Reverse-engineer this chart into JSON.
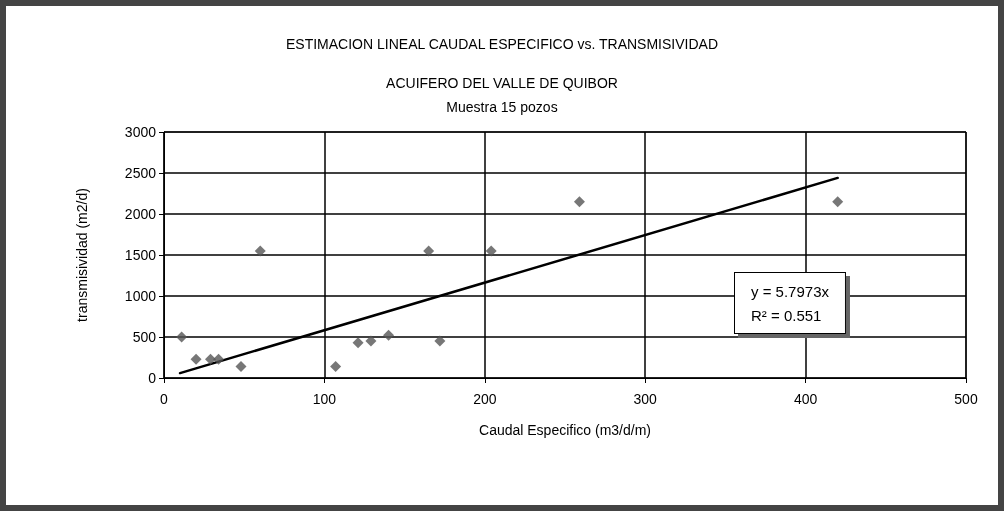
{
  "chart_data": {
    "type": "scatter",
    "title": "ESTIMACION LINEAL CAUDAL ESPECIFICO vs. TRANSMISIVIDAD",
    "subtitle": "ACUIFERO DEL VALLE DE QUIBOR\nMuestra 15 pozos",
    "xlabel": "Caudal Especifico (m3/d/m)",
    "ylabel": "transmisividad (m2/d)",
    "series": [
      {
        "color": "#555555",
        "x": [
          11,
          20,
          29,
          34,
          48,
          60,
          107,
          121,
          129,
          140,
          165,
          172,
          204,
          259,
          420
        ],
        "values": [
          500,
          230,
          230,
          230,
          140,
          1550,
          140,
          430,
          450,
          520,
          1550,
          450,
          1550,
          2150,
          2150
        ]
      },
      {
        "type": "line",
        "color": "#000000",
        "x": [
          10,
          420
        ],
        "values": [
          60,
          2440
        ],
        "marker": "none"
      }
    ],
    "annotations": [
      "y = 5.7973x",
      "R² = 0.551"
    ],
    "xlim": [
      0,
      500
    ],
    "xticks": [
      0,
      100,
      200,
      300,
      400,
      500
    ],
    "ylim": [
      0,
      3000
    ],
    "yticks": [
      0,
      500,
      1000,
      1500,
      2000,
      2500,
      3000
    ],
    "grid": true,
    "marker": "diamond"
  }
}
